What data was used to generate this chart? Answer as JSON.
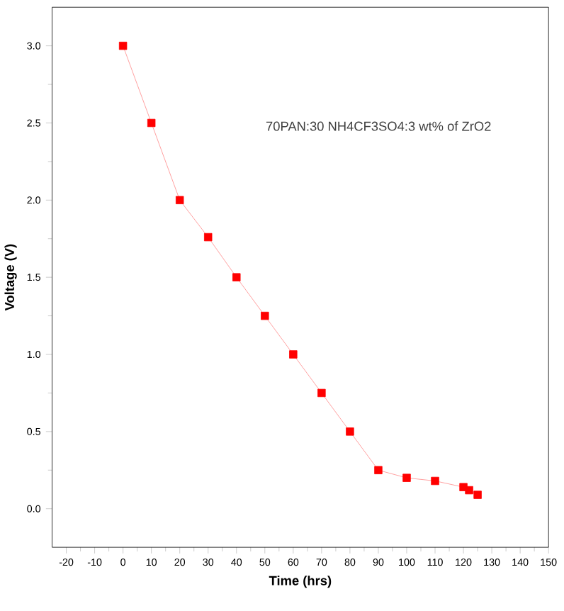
{
  "chart_data": {
    "type": "line",
    "xlabel": "Time (hrs)",
    "ylabel": "Voltage (V)",
    "annotations": [
      "70PAN:30 NH4CF3SO4:3 wt% of ZrO2"
    ],
    "x": [
      0,
      10,
      20,
      30,
      40,
      50,
      60,
      70,
      80,
      90,
      100,
      110,
      120,
      122,
      125
    ],
    "series": [
      {
        "color": "#ff0000",
        "values": [
          3.0,
          2.5,
          2.0,
          1.76,
          1.5,
          1.25,
          1.0,
          0.75,
          0.5,
          0.25,
          0.2,
          0.18,
          0.14,
          0.12,
          0.09
        ]
      }
    ],
    "marker": "square",
    "line_style": "solid",
    "grid": false,
    "xlim": [
      -25,
      150
    ],
    "xticks": [
      -20,
      -10,
      0,
      10,
      20,
      30,
      40,
      50,
      60,
      70,
      80,
      90,
      100,
      110,
      120,
      130,
      140,
      150
    ],
    "ylim": [
      -0.25,
      3.25
    ],
    "yticks": [
      {
        "value": 0.0,
        "label": "0.0"
      },
      {
        "value": 0.5,
        "label": "0.5"
      },
      {
        "value": 1.0,
        "label": "1.0"
      },
      {
        "value": 1.5,
        "label": "1.5"
      },
      {
        "value": 2.0,
        "label": "2.0"
      },
      {
        "value": 2.5,
        "label": "2.5"
      },
      {
        "value": 3.0,
        "label": "3.0"
      }
    ]
  }
}
